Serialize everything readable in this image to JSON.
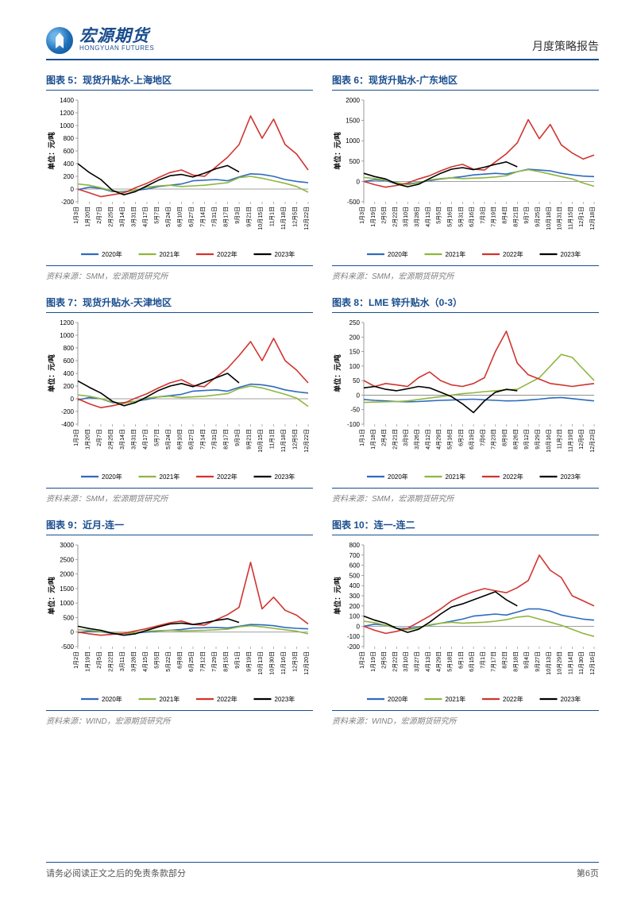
{
  "header": {
    "logo_cn": "宏源期货",
    "logo_en": "HONGYUAN FUTURES",
    "doc_title": "月度策略报告"
  },
  "footer": {
    "disclaimer": "请务必阅读正文之后的免责条款部分",
    "page_num": "第6页"
  },
  "legend_labels": [
    "2020年",
    "2021年",
    "2022年",
    "2023年"
  ],
  "series_colors": {
    "2020": "#2e6bbf",
    "2021": "#8fb63f",
    "2022": "#d1342f",
    "2023": "#000000"
  },
  "chart_common": {
    "background": "#ffffff",
    "grid_color": "#d9d9d9",
    "axis_color": "#808080",
    "tick_color": "#000000",
    "y_unit_label": "单位：元/吨"
  },
  "charts": [
    {
      "id": "c5",
      "title": "图表 5：现货升贴水-上海地区",
      "source": "资料来源：SMM，宏源期货研究所",
      "ylim": [
        -200,
        1400
      ],
      "ytick_step": 200,
      "x_labels": [
        "1月3日",
        "1月20日",
        "2月7日",
        "2月25日",
        "3月14日",
        "3月31日",
        "4月17日",
        "5月7日",
        "5月24日",
        "6月10日",
        "6月27日",
        "7月14日",
        "7月31日",
        "8月17日",
        "9月3日",
        "9月21日",
        "10月15日",
        "11月1日",
        "11月18日",
        "12月5日",
        "12月22日"
      ],
      "series": {
        "2020": [
          -10,
          30,
          10,
          -40,
          -40,
          -20,
          0,
          40,
          60,
          80,
          130,
          140,
          150,
          130,
          190,
          240,
          230,
          200,
          150,
          120,
          100
        ],
        "2021": [
          80,
          60,
          20,
          -30,
          -50,
          -20,
          30,
          50,
          60,
          40,
          50,
          60,
          80,
          100,
          180,
          200,
          170,
          130,
          90,
          40,
          -50
        ],
        "2022": [
          0,
          -60,
          -120,
          -90,
          -60,
          20,
          90,
          180,
          260,
          300,
          220,
          200,
          350,
          500,
          700,
          1150,
          800,
          1100,
          700,
          550,
          300
        ],
        "2023": [
          400,
          260,
          150,
          -20,
          -90,
          -40,
          50,
          140,
          210,
          230,
          190,
          250,
          320,
          370,
          270,
          null,
          null,
          null,
          null,
          null,
          null
        ]
      }
    },
    {
      "id": "c6",
      "title": "图表 6：现货升贴水-广东地区",
      "source": "资料来源：SMM，宏源期货研究所",
      "ylim": [
        -500,
        2000
      ],
      "ytick_step": 500,
      "x_labels": [
        "1月3日",
        "1月19日",
        "2月5日",
        "2月22日",
        "3月10日",
        "3月28日",
        "4月13日",
        "5月5日",
        "5月16日",
        "5月31日",
        "6月16日",
        "7月3日",
        "7月19日",
        "8月4日",
        "8月21日",
        "9月7日",
        "9月25日",
        "10月18日",
        "10月31日",
        "11月15日",
        "12月1日",
        "12月18日"
      ],
      "series": {
        "2020": [
          0,
          40,
          20,
          -60,
          -60,
          -30,
          20,
          60,
          90,
          120,
          160,
          180,
          200,
          180,
          240,
          300,
          280,
          260,
          200,
          160,
          130,
          120
        ],
        "2021": [
          100,
          70,
          30,
          -30,
          -80,
          -40,
          40,
          70,
          90,
          70,
          80,
          90,
          110,
          140,
          240,
          290,
          240,
          180,
          120,
          60,
          -40,
          -120
        ],
        "2022": [
          0,
          -80,
          -140,
          -100,
          -40,
          60,
          140,
          260,
          360,
          420,
          300,
          280,
          480,
          680,
          950,
          1520,
          1050,
          1400,
          900,
          700,
          550,
          650
        ],
        "2023": [
          200,
          120,
          60,
          -60,
          -130,
          -70,
          70,
          200,
          300,
          340,
          290,
          350,
          420,
          480,
          360,
          null,
          null,
          null,
          null,
          null,
          null,
          null
        ]
      }
    },
    {
      "id": "c7",
      "title": "图表 7：现货升贴水-天津地区",
      "source": "资料来源：SMM，宏源期货研究所",
      "ylim": [
        -400,
        1200
      ],
      "ytick_step": 200,
      "x_labels": [
        "1月3日",
        "1月20日",
        "2月7日",
        "2月25日",
        "3月14日",
        "3月31日",
        "4月17日",
        "5月7日",
        "5月24日",
        "6月10日",
        "6月27日",
        "7月14日",
        "7月31日",
        "8月17日",
        "9月3日",
        "9月21日",
        "10月15日",
        "11月1日",
        "11月18日",
        "12月5日",
        "12月22日"
      ],
      "series": {
        "2020": [
          -20,
          20,
          0,
          -60,
          -60,
          -40,
          -10,
          30,
          50,
          70,
          120,
          130,
          140,
          120,
          180,
          230,
          220,
          190,
          140,
          110,
          90
        ],
        "2021": [
          60,
          40,
          0,
          -50,
          -70,
          -40,
          10,
          30,
          40,
          20,
          30,
          40,
          60,
          80,
          160,
          200,
          170,
          120,
          70,
          10,
          -120
        ],
        "2022": [
          0,
          -80,
          -140,
          -110,
          -70,
          10,
          80,
          170,
          250,
          300,
          210,
          190,
          340,
          480,
          680,
          900,
          600,
          950,
          600,
          450,
          250
        ],
        "2023": [
          280,
          180,
          90,
          -40,
          -110,
          -60,
          30,
          130,
          200,
          240,
          190,
          260,
          330,
          400,
          250,
          null,
          null,
          null,
          null,
          null,
          null
        ]
      }
    },
    {
      "id": "c8",
      "title": "图表 8：LME 锌升贴水（0-3）",
      "source": "资料来源：SMM，宏源期货研究所",
      "ylim": [
        -100,
        250
      ],
      "ytick_step": 50,
      "x_labels": [
        "1月1日",
        "1月18日",
        "2月4日",
        "2月21日",
        "3月9日",
        "3月26日",
        "4月12日",
        "4月29日",
        "5月16日",
        "6月2日",
        "6月19日",
        "7月6日",
        "7月23日",
        "8月9日",
        "8月26日",
        "9月12日",
        "9月29日",
        "10月16日",
        "11月2日",
        "11月19日",
        "12月6日",
        "12月23日"
      ],
      "series": {
        "2020": [
          -15,
          -18,
          -20,
          -22,
          -23,
          -22,
          -20,
          -18,
          -17,
          -15,
          -14,
          -16,
          -18,
          -20,
          -19,
          -17,
          -14,
          -10,
          -8,
          -12,
          -16,
          -20
        ],
        "2021": [
          -25,
          -24,
          -23,
          -22,
          -20,
          -15,
          -10,
          -5,
          0,
          5,
          8,
          12,
          15,
          18,
          20,
          40,
          60,
          100,
          140,
          130,
          90,
          50
        ],
        "2022": [
          50,
          30,
          40,
          35,
          30,
          60,
          80,
          50,
          35,
          30,
          40,
          60,
          150,
          220,
          110,
          70,
          55,
          40,
          35,
          30,
          35,
          40
        ],
        "2023": [
          25,
          30,
          20,
          15,
          22,
          30,
          25,
          10,
          -5,
          -30,
          -60,
          -20,
          10,
          20,
          15,
          null,
          null,
          null,
          null,
          null,
          null,
          null
        ]
      }
    },
    {
      "id": "c9",
      "title": "图表 9：近月-连一",
      "source": "资料来源：WIND，宏源期货研究所",
      "ylim": [
        -500,
        3000
      ],
      "ytick_step": 500,
      "x_labels": [
        "1月2日",
        "1月19日",
        "2月5日",
        "2月22日",
        "3月11日",
        "3月28日",
        "4月15日",
        "5月5日",
        "5月22日",
        "6月8日",
        "6月25日",
        "7月12日",
        "7月29日",
        "8月15日",
        "9月1日",
        "9月19日",
        "10月13日",
        "10月30日",
        "11月16日",
        "12月3日",
        "12月20日"
      ],
      "series": {
        "2020": [
          -20,
          30,
          10,
          -50,
          -50,
          -30,
          0,
          40,
          60,
          90,
          140,
          150,
          160,
          140,
          200,
          260,
          250,
          220,
          160,
          130,
          110
        ],
        "2021": [
          80,
          60,
          20,
          -30,
          -50,
          -20,
          30,
          50,
          60,
          40,
          50,
          60,
          80,
          100,
          180,
          220,
          180,
          130,
          80,
          30,
          -60
        ],
        "2022": [
          0,
          -60,
          -110,
          -80,
          -40,
          40,
          120,
          220,
          320,
          380,
          260,
          240,
          420,
          600,
          850,
          2400,
          800,
          1200,
          750,
          580,
          280
        ],
        "2023": [
          200,
          120,
          60,
          -40,
          -110,
          -60,
          60,
          180,
          280,
          310,
          260,
          320,
          400,
          460,
          330,
          null,
          null,
          null,
          null,
          null,
          null
        ]
      }
    },
    {
      "id": "c10",
      "title": "图表 10：连一-连二",
      "source": "资料来源：WIND，宏源期货研究所",
      "ylim": [
        -200,
        800
      ],
      "ytick_step": 100,
      "x_labels": [
        "1月2日",
        "1月19日",
        "2月5日",
        "2月22日",
        "3月10日",
        "3月27日",
        "4月13日",
        "4月29日",
        "5月18日",
        "6月1日",
        "6月15日",
        "7月1日",
        "7月17日",
        "8月2日",
        "8月18日",
        "9月4日",
        "9月27日",
        "10月13日",
        "10月29日",
        "11月14日",
        "11月30日",
        "12月16日"
      ],
      "series": {
        "2020": [
          0,
          20,
          10,
          -20,
          -20,
          -10,
          10,
          30,
          50,
          70,
          100,
          110,
          120,
          110,
          140,
          170,
          170,
          150,
          110,
          90,
          70,
          60
        ],
        "2021": [
          50,
          35,
          10,
          -20,
          -35,
          -15,
          15,
          30,
          40,
          30,
          35,
          40,
          50,
          65,
          90,
          100,
          70,
          40,
          10,
          -30,
          -70,
          -100
        ],
        "2022": [
          0,
          -40,
          -70,
          -50,
          -20,
          40,
          100,
          170,
          250,
          300,
          340,
          370,
          350,
          330,
          380,
          450,
          700,
          550,
          480,
          300,
          250,
          200
        ],
        "2023": [
          100,
          60,
          30,
          -20,
          -60,
          -30,
          40,
          120,
          190,
          220,
          260,
          300,
          340,
          260,
          200,
          null,
          null,
          null,
          null,
          null,
          null,
          null
        ]
      }
    }
  ]
}
